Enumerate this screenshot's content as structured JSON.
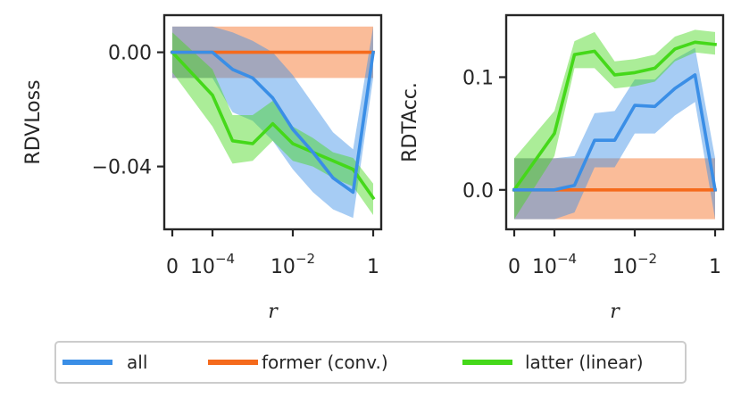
{
  "chart_data": [
    {
      "type": "line",
      "ylabel": "RDVLoss",
      "xlabel": "r",
      "x_positions": [
        0,
        1,
        1.5,
        2,
        2.5,
        3,
        3.5,
        4,
        4.5,
        5
      ],
      "x_ticks": [
        {
          "at": 0,
          "base": "0",
          "exp": ""
        },
        {
          "at": 1,
          "base": "10",
          "exp": "−4"
        },
        {
          "at": 3,
          "base": "10",
          "exp": "−2"
        },
        {
          "at": 5,
          "base": "1",
          "exp": ""
        }
      ],
      "y_ticks": [
        {
          "value": 0.0,
          "label": "0.00"
        },
        {
          "value": -0.04,
          "label": "−0.04"
        }
      ],
      "xlim": [
        -0.2,
        5.2
      ],
      "ylim": [
        -0.062,
        0.013
      ],
      "series": [
        {
          "name": "all",
          "color": "#3a8ee6",
          "values": [
            0.0,
            0.0,
            -0.006,
            -0.009,
            -0.016,
            -0.027,
            -0.035,
            -0.044,
            -0.049,
            0.0
          ],
          "lower": [
            -0.009,
            -0.009,
            -0.021,
            -0.024,
            -0.031,
            -0.041,
            -0.049,
            -0.055,
            -0.058,
            -0.009
          ],
          "upper": [
            0.009,
            0.009,
            0.007,
            0.004,
            0.0,
            -0.008,
            -0.018,
            -0.028,
            -0.034,
            0.009
          ]
        },
        {
          "name": "former (conv.)",
          "color": "#f56a1c",
          "values": [
            0.0,
            0.0,
            0.0,
            0.0,
            0.0,
            0.0,
            0.0,
            0.0,
            0.0,
            0.0
          ],
          "lower": [
            -0.009,
            -0.009,
            -0.009,
            -0.009,
            -0.009,
            -0.009,
            -0.009,
            -0.009,
            -0.009,
            -0.009
          ],
          "upper": [
            0.009,
            0.009,
            0.009,
            0.009,
            0.009,
            0.009,
            0.009,
            0.009,
            0.009,
            0.009
          ]
        },
        {
          "name": "latter (linear)",
          "color": "#45d81a",
          "values": [
            0.0,
            -0.015,
            -0.031,
            -0.032,
            -0.025,
            -0.032,
            -0.035,
            -0.038,
            -0.041,
            -0.051
          ],
          "lower": [
            -0.007,
            -0.026,
            -0.039,
            -0.038,
            -0.031,
            -0.038,
            -0.04,
            -0.044,
            -0.047,
            -0.057
          ],
          "upper": [
            0.007,
            -0.006,
            -0.022,
            -0.022,
            -0.017,
            -0.026,
            -0.03,
            -0.035,
            -0.037,
            -0.046
          ]
        }
      ]
    },
    {
      "type": "line",
      "ylabel": "RDTAcc.",
      "xlabel": "r",
      "x_positions": [
        0,
        1,
        1.5,
        2,
        2.5,
        3,
        3.5,
        4,
        4.5,
        5
      ],
      "x_ticks": [
        {
          "at": 0,
          "base": "0",
          "exp": ""
        },
        {
          "at": 1,
          "base": "10",
          "exp": "−4"
        },
        {
          "at": 3,
          "base": "10",
          "exp": "−2"
        },
        {
          "at": 5,
          "base": "1",
          "exp": ""
        }
      ],
      "y_ticks": [
        {
          "value": 0.0,
          "label": "0.0"
        },
        {
          "value": 0.1,
          "label": "0.1"
        }
      ],
      "xlim": [
        -0.2,
        5.2
      ],
      "ylim": [
        -0.035,
        0.155
      ],
      "series": [
        {
          "name": "all",
          "color": "#3a8ee6",
          "values": [
            0.0,
            0.0,
            0.004,
            0.044,
            0.044,
            0.075,
            0.074,
            0.09,
            0.102,
            0.0
          ],
          "lower": [
            -0.026,
            -0.026,
            -0.02,
            0.02,
            0.02,
            0.05,
            0.05,
            0.066,
            0.078,
            -0.026
          ],
          "upper": [
            0.028,
            0.028,
            0.03,
            0.068,
            0.07,
            0.098,
            0.098,
            0.116,
            0.126,
            0.028
          ]
        },
        {
          "name": "former (conv.)",
          "color": "#f56a1c",
          "values": [
            0.0,
            0.0,
            0.0,
            0.0,
            0.0,
            0.0,
            0.0,
            0.0,
            0.0,
            0.0
          ],
          "lower": [
            -0.026,
            -0.026,
            -0.026,
            -0.026,
            -0.026,
            -0.026,
            -0.026,
            -0.026,
            -0.026,
            -0.026
          ],
          "upper": [
            0.028,
            0.028,
            0.028,
            0.028,
            0.028,
            0.028,
            0.028,
            0.028,
            0.028,
            0.028
          ]
        },
        {
          "name": "latter (linear)",
          "color": "#45d81a",
          "values": [
            0.0,
            0.05,
            0.12,
            0.123,
            0.102,
            0.104,
            0.108,
            0.125,
            0.131,
            0.129
          ],
          "lower": [
            -0.026,
            0.03,
            0.108,
            0.108,
            0.09,
            0.092,
            0.096,
            0.114,
            0.122,
            0.12
          ],
          "upper": [
            0.028,
            0.07,
            0.132,
            0.14,
            0.114,
            0.116,
            0.12,
            0.136,
            0.142,
            0.14
          ]
        }
      ]
    }
  ],
  "legend": {
    "items": [
      {
        "label": "all",
        "color": "#3a8ee6"
      },
      {
        "label": "former (conv.)",
        "color": "#f56a1c"
      },
      {
        "label": "latter (linear)",
        "color": "#45d81a"
      }
    ]
  }
}
